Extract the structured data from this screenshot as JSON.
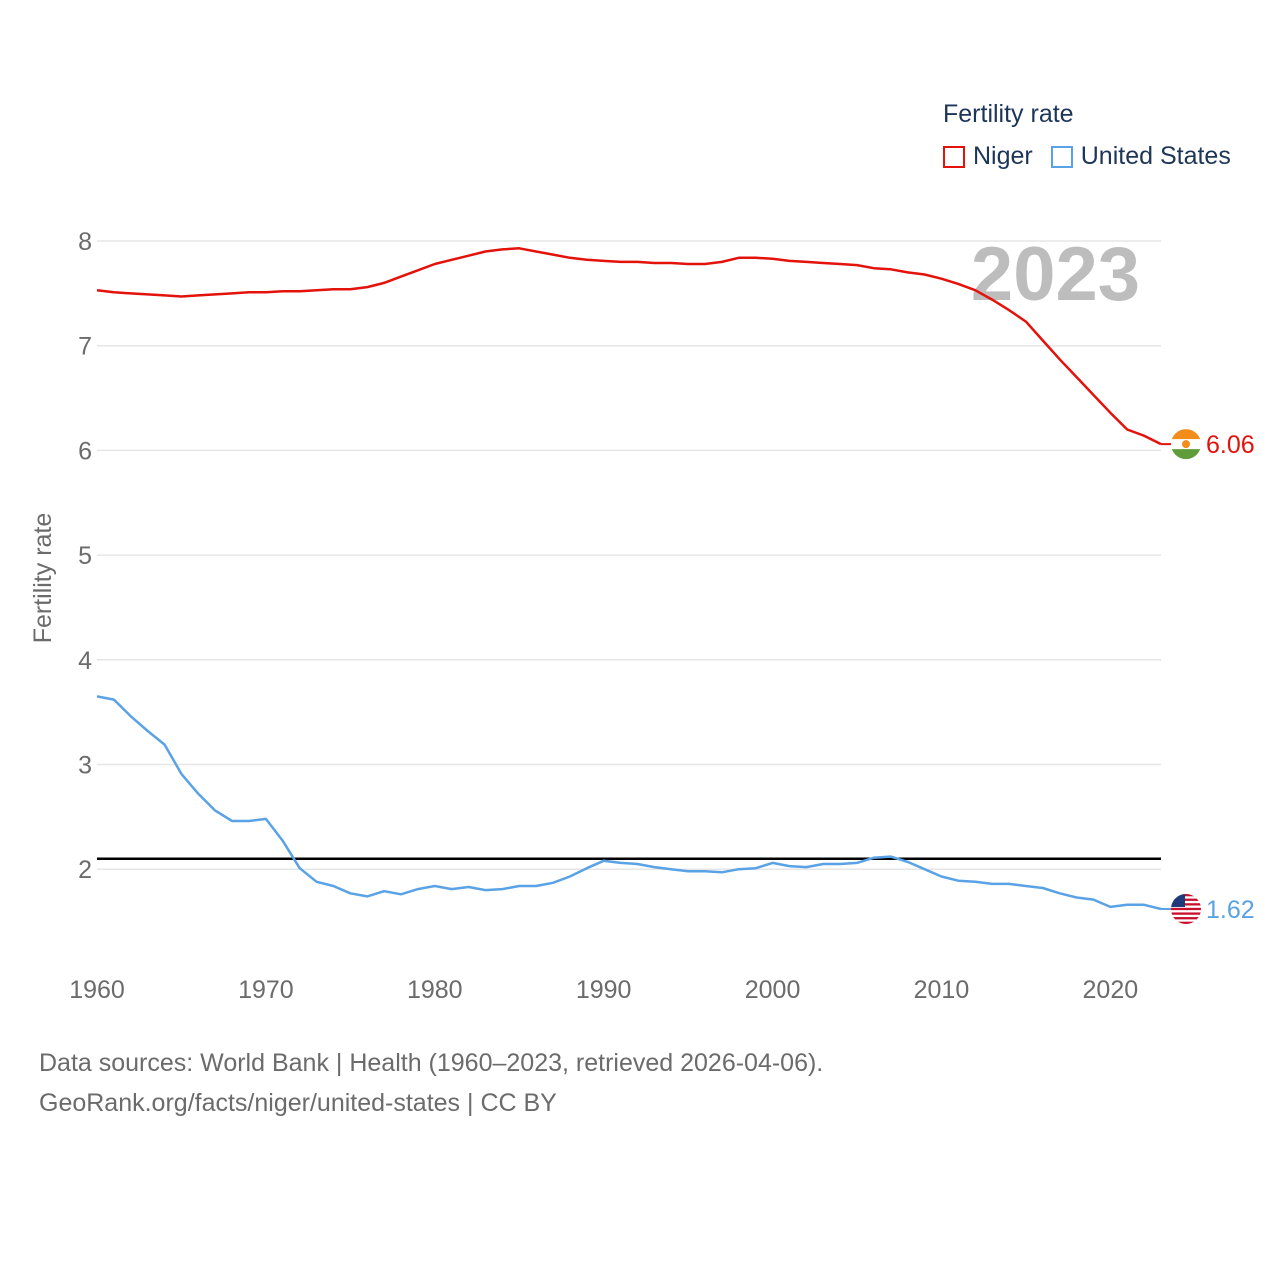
{
  "chart_data": {
    "type": "line",
    "legend_title": "Fertility rate",
    "legend_placement": "top-right",
    "ylabel": "Fertility rate",
    "xlabel": "",
    "year_watermark": "2023",
    "xlim": [
      1960,
      2023
    ],
    "ylim": [
      1.2,
      8.3
    ],
    "x_ticks": [
      "1960",
      "1970",
      "1980",
      "1990",
      "2000",
      "2010",
      "2020"
    ],
    "y_ticks": [
      "2",
      "3",
      "4",
      "5",
      "6",
      "7",
      "8"
    ],
    "reference_line": {
      "y": 2.1,
      "color": "#000000"
    },
    "x": [
      1960,
      1961,
      1962,
      1963,
      1964,
      1965,
      1966,
      1967,
      1968,
      1969,
      1970,
      1971,
      1972,
      1973,
      1974,
      1975,
      1976,
      1977,
      1978,
      1979,
      1980,
      1981,
      1982,
      1983,
      1984,
      1985,
      1986,
      1987,
      1988,
      1989,
      1990,
      1991,
      1992,
      1993,
      1994,
      1995,
      1996,
      1997,
      1998,
      1999,
      2000,
      2001,
      2002,
      2003,
      2004,
      2005,
      2006,
      2007,
      2008,
      2009,
      2010,
      2011,
      2012,
      2013,
      2014,
      2015,
      2016,
      2017,
      2018,
      2019,
      2020,
      2021,
      2022,
      2023
    ],
    "series": [
      {
        "name": "Niger",
        "color": "#e3120b",
        "end_label": "6.06",
        "flag_icon": "niger-flag-icon",
        "values": [
          7.53,
          7.51,
          7.5,
          7.49,
          7.48,
          7.47,
          7.48,
          7.49,
          7.5,
          7.51,
          7.51,
          7.52,
          7.52,
          7.53,
          7.54,
          7.54,
          7.56,
          7.6,
          7.66,
          7.72,
          7.78,
          7.82,
          7.86,
          7.9,
          7.92,
          7.93,
          7.9,
          7.87,
          7.84,
          7.82,
          7.81,
          7.8,
          7.8,
          7.79,
          7.79,
          7.78,
          7.78,
          7.8,
          7.84,
          7.84,
          7.83,
          7.81,
          7.8,
          7.79,
          7.78,
          7.77,
          7.74,
          7.73,
          7.7,
          7.68,
          7.64,
          7.59,
          7.53,
          7.44,
          7.34,
          7.23,
          7.05,
          6.87,
          6.7,
          6.53,
          6.36,
          6.2,
          6.14,
          6.06
        ]
      },
      {
        "name": "United States",
        "color": "#5aa2e6",
        "end_label": "1.62",
        "flag_icon": "usa-flag-icon",
        "values": [
          3.65,
          3.62,
          3.46,
          3.32,
          3.19,
          2.91,
          2.72,
          2.56,
          2.46,
          2.46,
          2.48,
          2.27,
          2.01,
          1.88,
          1.84,
          1.77,
          1.74,
          1.79,
          1.76,
          1.81,
          1.84,
          1.81,
          1.83,
          1.8,
          1.81,
          1.84,
          1.84,
          1.87,
          1.93,
          2.01,
          2.08,
          2.06,
          2.05,
          2.02,
          2.0,
          1.98,
          1.98,
          1.97,
          2.0,
          2.01,
          2.06,
          2.03,
          2.02,
          2.05,
          2.05,
          2.06,
          2.11,
          2.12,
          2.07,
          2.0,
          1.93,
          1.89,
          1.88,
          1.86,
          1.86,
          1.84,
          1.82,
          1.77,
          1.73,
          1.71,
          1.64,
          1.66,
          1.66,
          1.62
        ]
      }
    ]
  },
  "footer": {
    "line1": "Data sources: World Bank | Health (1960–2023, retrieved 2026-04-06).",
    "line2": "GeoRank.org/facts/niger/united-states | CC BY"
  }
}
